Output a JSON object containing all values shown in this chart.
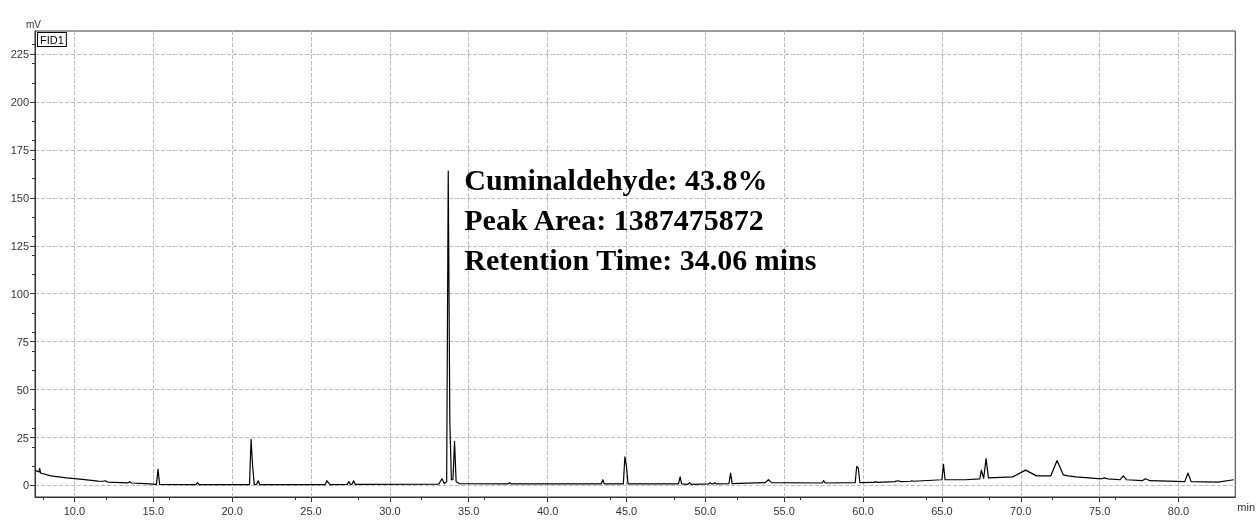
{
  "chart_data": {
    "type": "line",
    "xlabel": "min",
    "ylabel": "mV",
    "annotations": [
      "FID1",
      "Cuminaldehyde: 43.8%",
      "Peak Area: 1387475872",
      "Retention Time: 34.06 mins"
    ],
    "xlim": [
      7.5,
      83.6
    ],
    "ylim": [
      -6,
      237
    ],
    "xticks": [
      {
        "value": 10,
        "label": "10.0"
      },
      {
        "value": 15,
        "label": "15.0"
      },
      {
        "value": 20,
        "label": "20.0"
      },
      {
        "value": 25,
        "label": "25.0"
      },
      {
        "value": 30,
        "label": "30.0"
      },
      {
        "value": 35,
        "label": "35.0"
      },
      {
        "value": 40,
        "label": "40.0"
      },
      {
        "value": 45,
        "label": "45.0"
      },
      {
        "value": 50,
        "label": "50.0"
      },
      {
        "value": 55,
        "label": "55.0"
      },
      {
        "value": 60,
        "label": "60.0"
      },
      {
        "value": 65,
        "label": "65.0"
      },
      {
        "value": 70,
        "label": "70.0"
      },
      {
        "value": 75,
        "label": "75.0"
      },
      {
        "value": 80,
        "label": "80.0"
      }
    ],
    "yticks": [
      0,
      25,
      50,
      75,
      100,
      125,
      150,
      175,
      200,
      225
    ],
    "grid": true,
    "marker": "none",
    "line_style": "solid",
    "series": [
      {
        "color": "#000000",
        "x": [
          7.5,
          7.75,
          7.8,
          7.85,
          8.5,
          9.5,
          10.5,
          11.5,
          11.85,
          11.95,
          12.1,
          13.4,
          13.5,
          13.6,
          14.5,
          15.2,
          15.3,
          15.4,
          17.7,
          17.8,
          17.9,
          21.1,
          21.2,
          21.3,
          21.4,
          21.55,
          21.65,
          21.75,
          25.9,
          26.0,
          26.2,
          27.3,
          27.4,
          27.5,
          27.6,
          27.7,
          27.8,
          33.1,
          33.3,
          33.45,
          33.6,
          33.7,
          33.8,
          33.9,
          34.0,
          34.1,
          34.2,
          34.4,
          37.5,
          37.6,
          37.7,
          43.4,
          43.5,
          43.6,
          44.8,
          44.9,
          45.0,
          45.1,
          48.3,
          48.4,
          48.5,
          48.9,
          49.0,
          49.1,
          50.2,
          50.3,
          50.4,
          50.5,
          50.6,
          50.7,
          51.5,
          51.6,
          51.7,
          53.8,
          54.0,
          54.2,
          57.4,
          57.5,
          57.6,
          59.5,
          59.6,
          59.7,
          59.8,
          60.7,
          60.8,
          60.9,
          62.0,
          62.2,
          62.4,
          63.0,
          63.1,
          63.2,
          65.0,
          65.1,
          65.2,
          66.3,
          66.4,
          66.5,
          67.4,
          67.5,
          67.65,
          67.8,
          67.95,
          69.5,
          70.3,
          71.0,
          71.9,
          72.3,
          72.7,
          73.0,
          73.5,
          75.1,
          75.3,
          75.5,
          76.3,
          76.5,
          76.7,
          77.7,
          77.9,
          78.2,
          80.4,
          80.6,
          80.8,
          82.5,
          83.5
        ],
        "values": [
          8,
          7,
          9,
          6.5,
          5,
          4,
          3.2,
          2.3,
          2.2,
          2.5,
          1.8,
          1.4,
          2,
          1.3,
          1,
          0.6,
          8.5,
          0.6,
          0.5,
          1.5,
          0.5,
          0.5,
          24,
          10,
          0.5,
          0.6,
          2.5,
          0.5,
          0.5,
          2.5,
          0.5,
          0.6,
          2,
          0.6,
          0.7,
          2.5,
          0.6,
          0.7,
          3.5,
          1,
          2,
          164,
          34,
          3,
          3,
          23,
          2,
          1,
          0.8,
          1.5,
          0.8,
          0.8,
          3,
          0.8,
          0.8,
          15,
          10,
          0.8,
          0.8,
          4.5,
          0.8,
          0.6,
          1.5,
          0.6,
          0.8,
          1.5,
          0.8,
          0.8,
          1.5,
          0.8,
          1,
          6.5,
          1,
          1.5,
          3,
          1.5,
          1.3,
          2.5,
          1.3,
          1.5,
          10,
          9,
          1.5,
          1.6,
          2,
          1.6,
          2,
          2.5,
          2,
          2.2,
          2.5,
          2.2,
          3,
          11,
          3,
          3,
          3,
          3,
          3.5,
          8,
          3.8,
          14,
          4,
          4.5,
          8,
          5,
          5,
          13,
          5.5,
          5,
          4.5,
          3.5,
          4,
          3.5,
          3,
          5,
          3,
          2.5,
          3.5,
          2.5,
          2,
          6.5,
          2,
          1.8,
          3
        ]
      }
    ]
  }
}
